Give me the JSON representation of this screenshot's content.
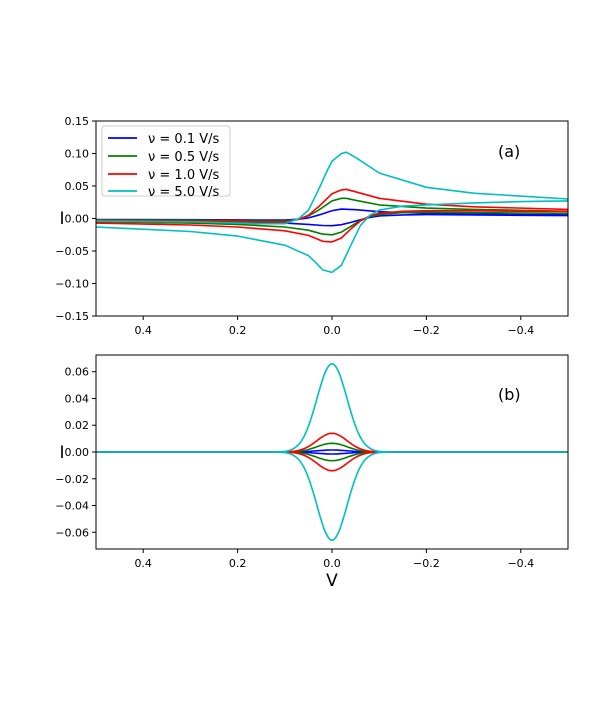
{
  "chart_data": [
    {
      "type": "line",
      "panel_label": "(a)",
      "xlabel": "",
      "ylabel": "I",
      "xlim": [
        0.5,
        -0.5
      ],
      "ylim": [
        -0.15,
        0.15
      ],
      "xticks": [
        0.4,
        0.2,
        0.0,
        -0.2,
        -0.4
      ],
      "xtick_labels": [
        "0.4",
        "0.2",
        "0.0",
        "−0.2",
        "−0.4"
      ],
      "yticks": [
        -0.15,
        -0.1,
        -0.05,
        0.0,
        0.05,
        0.1,
        0.15
      ],
      "ytick_labels": [
        "−0.15",
        "−0.10",
        "−0.05",
        "0.00",
        "0.05",
        "0.10",
        "0.15"
      ],
      "legend_position": "top-left",
      "series": [
        {
          "name": "ν = 0.1 V/s",
          "color": "#0000ff",
          "anodic": {
            "x": [
              0.5,
              0.3,
              0.2,
              0.15,
              0.1,
              0.07,
              0.05,
              0.04,
              0.03,
              0.02,
              0.01,
              0.0,
              -0.02,
              -0.05,
              -0.1,
              -0.2,
              -0.3,
              -0.5
            ],
            "y": [
              -0.0015,
              -0.0018,
              -0.0022,
              -0.0025,
              -0.0025,
              -0.001,
              0.001,
              0.003,
              0.005,
              0.007,
              0.0095,
              0.012,
              0.0145,
              0.0135,
              0.0105,
              0.008,
              0.0068,
              0.0055
            ]
          },
          "cathodic": {
            "x": [
              0.5,
              0.3,
              0.2,
              0.1,
              0.05,
              0.02,
              0.0,
              -0.02,
              -0.04,
              -0.06,
              -0.08,
              -0.1,
              -0.15,
              -0.2,
              -0.3,
              -0.4,
              -0.5
            ],
            "y": [
              -0.003,
              -0.004,
              -0.005,
              -0.007,
              -0.009,
              -0.0108,
              -0.011,
              -0.0095,
              -0.006,
              -0.002,
              0.0015,
              0.004,
              0.0055,
              0.006,
              0.0055,
              0.005,
              0.0045
            ]
          }
        },
        {
          "name": "ν = 0.5 V/s",
          "color": "#008000",
          "anodic": {
            "x": [
              0.5,
              0.3,
              0.2,
              0.15,
              0.1,
              0.07,
              0.05,
              0.04,
              0.03,
              0.02,
              0.01,
              0.0,
              -0.02,
              -0.03,
              -0.05,
              -0.1,
              -0.2,
              -0.3,
              -0.5
            ],
            "y": [
              -0.002,
              -0.0025,
              -0.0035,
              -0.004,
              -0.004,
              -0.001,
              0.004,
              0.008,
              0.012,
              0.017,
              0.022,
              0.027,
              0.031,
              0.031,
              0.028,
              0.021,
              0.016,
              0.014,
              0.011
            ]
          },
          "cathodic": {
            "x": [
              0.5,
              0.3,
              0.2,
              0.1,
              0.05,
              0.03,
              0.02,
              0.0,
              -0.02,
              -0.04,
              -0.06,
              -0.08,
              -0.1,
              -0.15,
              -0.2,
              -0.3,
              -0.4,
              -0.5
            ],
            "y": [
              -0.005,
              -0.007,
              -0.009,
              -0.013,
              -0.018,
              -0.022,
              -0.024,
              -0.025,
              -0.021,
              -0.012,
              -0.003,
              0.003,
              0.006,
              0.009,
              0.0095,
              0.009,
              0.0085,
              0.008
            ]
          }
        },
        {
          "name": "ν = 1.0 V/s",
          "color": "#ff0000",
          "anodic": {
            "x": [
              0.5,
              0.3,
              0.2,
              0.15,
              0.1,
              0.07,
              0.05,
              0.04,
              0.03,
              0.02,
              0.01,
              0.0,
              -0.02,
              -0.03,
              -0.05,
              -0.1,
              -0.2,
              -0.3,
              -0.5
            ],
            "y": [
              -0.003,
              -0.0035,
              -0.0045,
              -0.0055,
              -0.0055,
              -0.001,
              0.005,
              0.011,
              0.017,
              0.024,
              0.031,
              0.038,
              0.044,
              0.045,
              0.041,
              0.031,
              0.022,
              0.018,
              0.014
            ]
          },
          "cathodic": {
            "x": [
              0.5,
              0.3,
              0.2,
              0.1,
              0.05,
              0.03,
              0.02,
              0.0,
              -0.02,
              -0.04,
              -0.06,
              -0.08,
              -0.1,
              -0.15,
              -0.2,
              -0.3,
              -0.4,
              -0.5
            ],
            "y": [
              -0.007,
              -0.01,
              -0.013,
              -0.019,
              -0.026,
              -0.032,
              -0.035,
              -0.036,
              -0.03,
              -0.016,
              -0.004,
              0.004,
              0.008,
              0.011,
              0.012,
              0.012,
              0.011,
              0.011
            ]
          }
        },
        {
          "name": "ν = 5.0 V/s",
          "color": "#00bfbf",
          "anodic": {
            "x": [
              0.5,
              0.3,
              0.2,
              0.15,
              0.1,
              0.07,
              0.05,
              0.04,
              0.03,
              0.02,
              0.01,
              0.0,
              -0.02,
              -0.03,
              -0.05,
              -0.1,
              -0.2,
              -0.3,
              -0.5
            ],
            "y": [
              -0.004,
              -0.005,
              -0.007,
              -0.008,
              -0.008,
              0.0,
              0.013,
              0.027,
              0.042,
              0.058,
              0.074,
              0.088,
              0.1,
              0.102,
              0.094,
              0.07,
              0.048,
              0.039,
              0.03
            ]
          },
          "cathodic": {
            "x": [
              0.5,
              0.3,
              0.2,
              0.1,
              0.05,
              0.03,
              0.02,
              0.0,
              -0.02,
              -0.04,
              -0.06,
              -0.08,
              -0.1,
              -0.15,
              -0.2,
              -0.3,
              -0.4,
              -0.5
            ],
            "y": [
              -0.013,
              -0.02,
              -0.027,
              -0.041,
              -0.057,
              -0.071,
              -0.079,
              -0.083,
              -0.072,
              -0.041,
              -0.011,
              0.005,
              0.013,
              0.019,
              0.021,
              0.024,
              0.026,
              0.027
            ]
          }
        }
      ]
    },
    {
      "type": "line",
      "panel_label": "(b)",
      "xlabel": "V",
      "ylabel": "I",
      "xlim": [
        0.5,
        -0.5
      ],
      "ylim": [
        -0.0725,
        0.0725
      ],
      "xticks": [
        0.4,
        0.2,
        0.0,
        -0.2,
        -0.4
      ],
      "xtick_labels": [
        "0.4",
        "0.2",
        "0.0",
        "−0.2",
        "−0.4"
      ],
      "yticks": [
        -0.06,
        -0.04,
        -0.02,
        0.0,
        0.02,
        0.04,
        0.06
      ],
      "ytick_labels": [
        "−0.06",
        "−0.04",
        "−0.02",
        "0.00",
        "0.02",
        "0.04",
        "0.06"
      ],
      "series": [
        {
          "name": "ν = 0.1 V/s",
          "color": "#0000ff",
          "peak_current": 0.0015,
          "peak_potential": 0.0,
          "peak_width": 0.045
        },
        {
          "name": "ν = 0.5 V/s",
          "color": "#008000",
          "peak_current": 0.0065,
          "peak_potential": 0.0,
          "peak_width": 0.045
        },
        {
          "name": "ν = 1.0 V/s",
          "color": "#ff0000",
          "peak_current": 0.014,
          "peak_potential": 0.0,
          "peak_width": 0.045
        },
        {
          "name": "ν = 5.0 V/s",
          "color": "#00bfbf",
          "peak_current": 0.066,
          "peak_potential": 0.0,
          "peak_width": 0.045
        }
      ]
    }
  ]
}
